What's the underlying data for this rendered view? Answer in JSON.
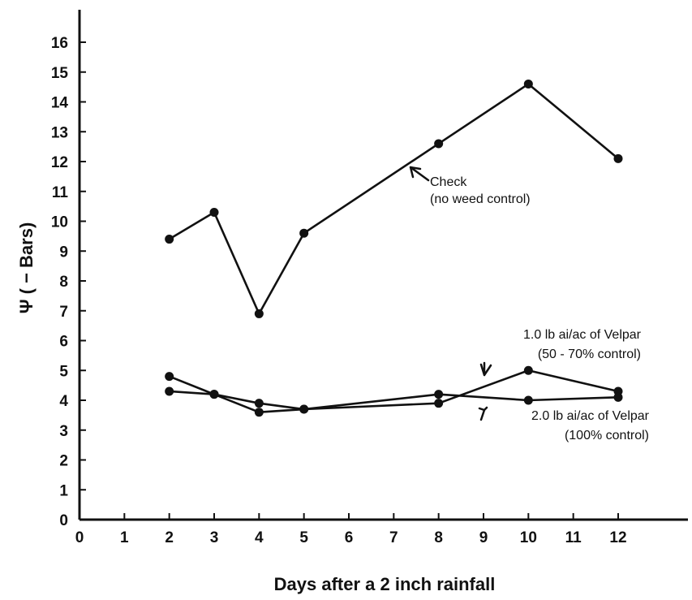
{
  "chart_data": {
    "type": "line",
    "title": "",
    "xlabel": "Days after a 2 inch rainfall",
    "ylabel": "Ψ ( − Bars)",
    "xlim": [
      0,
      12
    ],
    "ylim": [
      0,
      16
    ],
    "xticks": [
      0,
      1,
      2,
      3,
      4,
      5,
      6,
      7,
      8,
      9,
      10,
      11,
      12
    ],
    "yticks": [
      0,
      1,
      2,
      3,
      4,
      5,
      6,
      7,
      8,
      9,
      10,
      11,
      12,
      13,
      14,
      15,
      16
    ],
    "grid": false,
    "series": [
      {
        "annotation": [
          "Check",
          "(no weed control)"
        ],
        "x": [
          2,
          3,
          4,
          5,
          8,
          10,
          12
        ],
        "y": [
          9.4,
          10.3,
          6.9,
          9.6,
          12.6,
          14.6,
          12.1
        ]
      },
      {
        "annotation": [
          "1.0 lb ai/ac of Velpar",
          "(50 - 70% control)"
        ],
        "x": [
          2,
          3,
          4,
          5,
          8,
          10,
          12
        ],
        "y": [
          4.8,
          4.2,
          3.6,
          3.7,
          3.9,
          5.0,
          4.3
        ]
      },
      {
        "annotation": [
          "2.0 lb ai/ac of Velpar",
          "(100% control)"
        ],
        "x": [
          2,
          3,
          4,
          5,
          8,
          10,
          12
        ],
        "y": [
          4.3,
          4.2,
          3.9,
          3.7,
          4.2,
          4.0,
          4.1
        ]
      }
    ]
  },
  "colors": {
    "ink": "#111111",
    "background": "#ffffff"
  }
}
